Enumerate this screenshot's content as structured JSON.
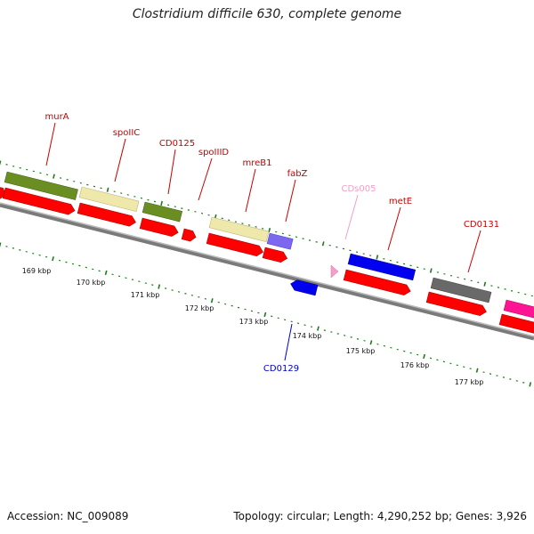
{
  "title": "Clostridium difficile 630, complete genome",
  "footer": {
    "accession": "Accession: NC_009089",
    "summary": "Topology: circular; Length: 4,290,252 bp; Genes: 3,926"
  },
  "colors": {
    "label_red": "#cc0000",
    "label_blue": "#0000cc",
    "label_pink": "#f0a0c8",
    "tick_green": "#1f7a1f",
    "backbone_gray": "#808080",
    "olive": "#6b8e23",
    "khaki": "#eee8aa",
    "red": "#ff0000",
    "slate_blue": "#7b68ee",
    "blue": "#0000ff",
    "gray": "#696969",
    "magenta": "#ff1493",
    "pink": "#ffb6c1"
  },
  "kbp_labels": [
    "169 kbp",
    "170 kbp",
    "171 kbp",
    "172 kbp",
    "173 kbp",
    "174 kbp",
    "175 kbp",
    "176 kbp",
    "177 kbp"
  ],
  "gene_labels": [
    {
      "text": "murA",
      "color": "red"
    },
    {
      "text": "spoIIC",
      "color": "red"
    },
    {
      "text": "CD0125",
      "color": "red"
    },
    {
      "text": "spoIIID",
      "color": "red"
    },
    {
      "text": "mreB1",
      "color": "red"
    },
    {
      "text": "fabZ",
      "color": "red"
    },
    {
      "text": "CDs005",
      "color": "pink"
    },
    {
      "text": "metE",
      "color": "red"
    },
    {
      "text": "CD0131",
      "color": "red"
    },
    {
      "text": "CD0129",
      "color": "blue"
    }
  ]
}
